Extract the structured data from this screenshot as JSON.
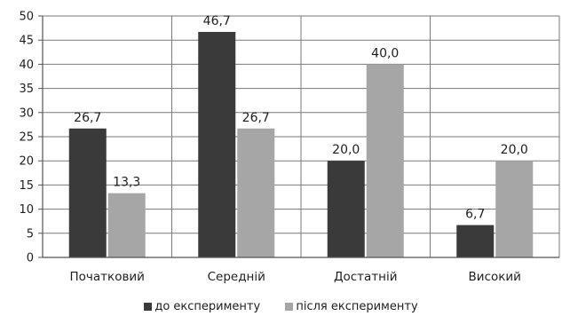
{
  "chart_data": {
    "type": "bar",
    "categories": [
      "Початковий",
      "Середній",
      "Достатній",
      "Високий"
    ],
    "series": [
      {
        "name": "до експерименту",
        "values": [
          26.7,
          46.7,
          20.0,
          6.7
        ],
        "labels": [
          "26,7",
          "46,7",
          "20,0",
          "6,7"
        ],
        "color": "#3a3a3a"
      },
      {
        "name": "після експерименту",
        "values": [
          13.3,
          26.7,
          40.0,
          20.0
        ],
        "labels": [
          "13,3",
          "26,7",
          "40,0",
          "20,0"
        ],
        "color": "#a6a6a6"
      }
    ],
    "ylim": [
      0,
      50
    ],
    "yticks": [
      0,
      5,
      10,
      15,
      20,
      25,
      30,
      35,
      40,
      45,
      50
    ],
    "grid": true,
    "legend": "bottom",
    "title": "",
    "xlabel": "",
    "ylabel": ""
  }
}
